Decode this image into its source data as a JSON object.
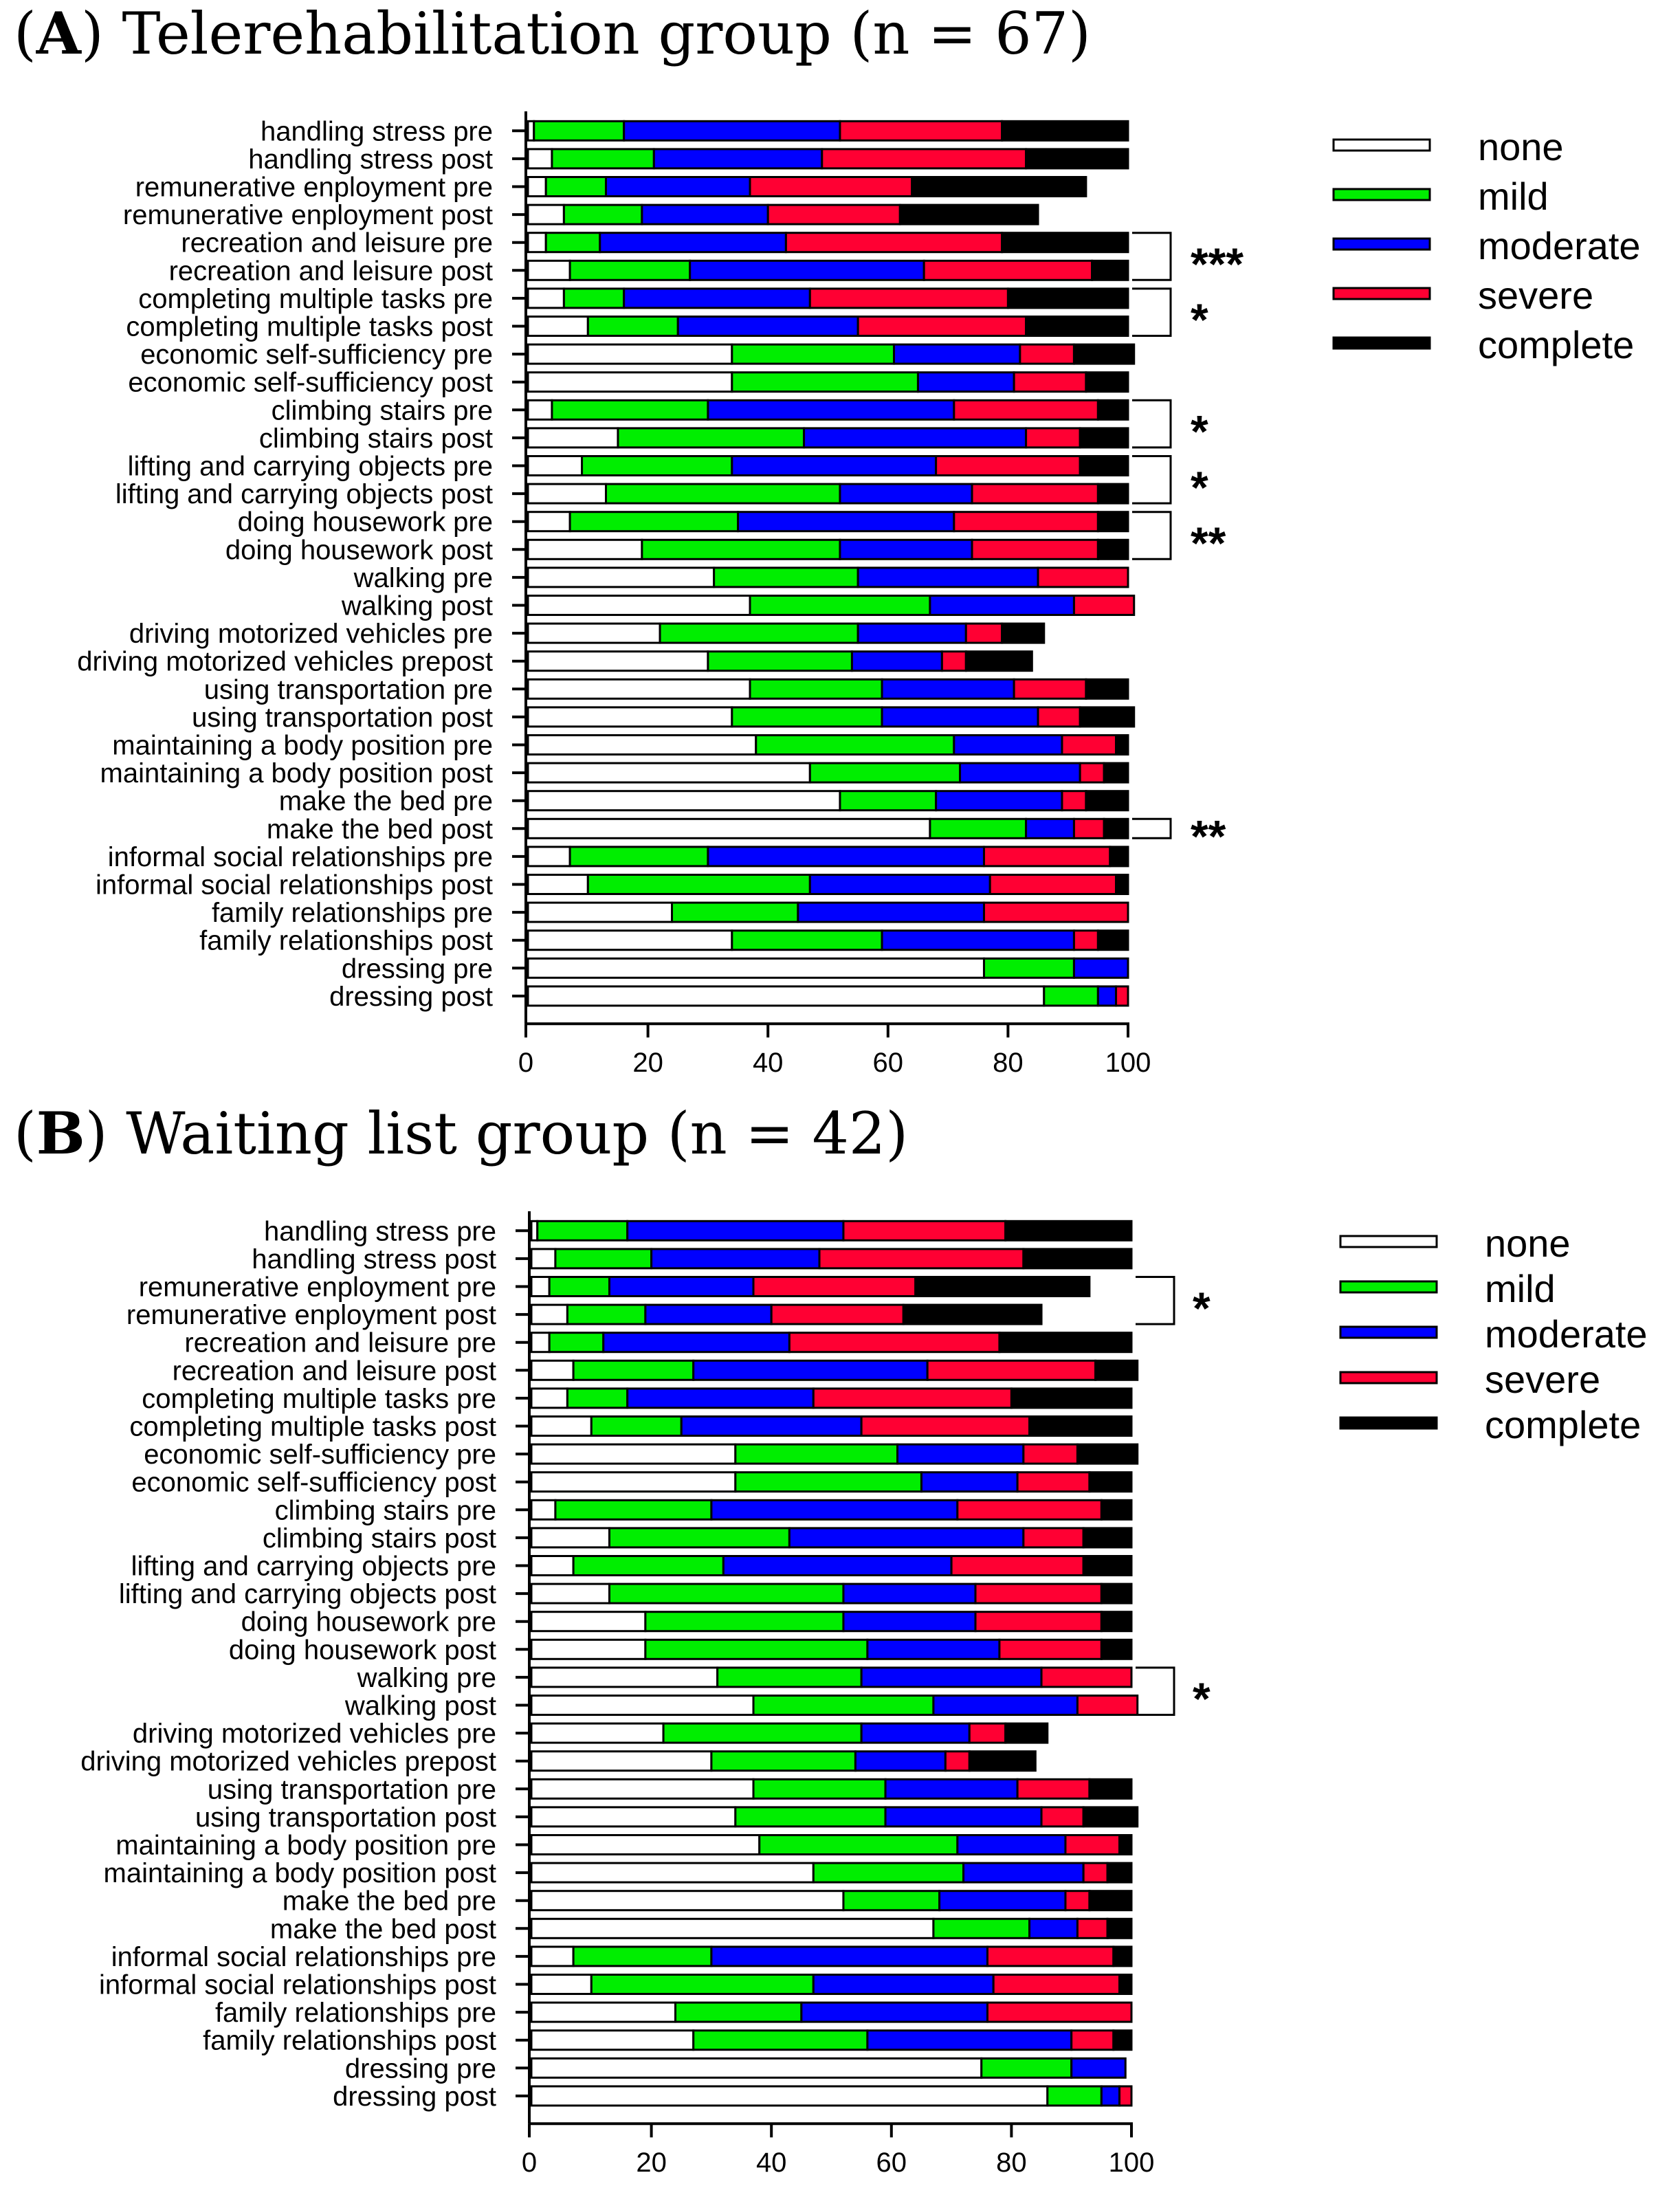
{
  "categories": [
    "handling stress pre",
    "handling stress post",
    "remunerative enployment pre",
    "remunerative enployment post",
    "recreation and leisure pre",
    "recreation and leisure post",
    "completing multiple tasks pre",
    "completing multiple tasks post",
    "economic self-sufficiency pre",
    "economic self-sufficiency post",
    "climbing stairs pre",
    "climbing stairs post",
    "lifting and carrying objects pre",
    "lifting and carrying objects post",
    "doing housework pre",
    "doing housework post",
    "walking pre",
    "walking post",
    "driving motorized vehicles pre",
    "driving motorized vehicles prepost",
    "using transportation pre",
    "using transportation post",
    "maintaining a body position pre",
    "maintaining a body position post",
    "make the bed pre",
    "make the bed post",
    "informal social relationships pre",
    "informal social relationships post",
    "family relationships pre",
    "family relationships post",
    "dressing pre",
    "dressing  post"
  ],
  "legend": [
    {
      "label": "none",
      "color": "#ffffff"
    },
    {
      "label": "mild",
      "color": "#00ee00"
    },
    {
      "label": "moderate",
      "color": "#0000ff"
    },
    {
      "label": "severe",
      "color": "#ff0033"
    },
    {
      "label": "complete",
      "color": "#000000"
    }
  ],
  "chart_data": [
    {
      "type": "bar",
      "orientation": "horizontal",
      "stacked": true,
      "title": "(A) Telerehabilitation group (n = 67)",
      "panel_letter": "A",
      "title_rest": " Telerehabilitation group (n = 67)",
      "xlim": [
        0,
        100
      ],
      "xticks": [
        "0",
        "20",
        "40",
        "60",
        "80",
        "100"
      ],
      "grid": false,
      "legend_position": "right",
      "series_names": [
        "none",
        "mild",
        "moderate",
        "severe",
        "complete"
      ],
      "values": [
        [
          1,
          15,
          36,
          27,
          21
        ],
        [
          4,
          17,
          28,
          34,
          17
        ],
        [
          3,
          10,
          24,
          27,
          29
        ],
        [
          6,
          13,
          21,
          22,
          23
        ],
        [
          3,
          9,
          31,
          36,
          21
        ],
        [
          7,
          20,
          39,
          28,
          6
        ],
        [
          6,
          10,
          31,
          33,
          20
        ],
        [
          10,
          15,
          30,
          28,
          17
        ],
        [
          34,
          27,
          21,
          9,
          10
        ],
        [
          34,
          31,
          16,
          12,
          7
        ],
        [
          4,
          26,
          41,
          24,
          5
        ],
        [
          15,
          31,
          37,
          9,
          8
        ],
        [
          9,
          25,
          34,
          24,
          8
        ],
        [
          13,
          39,
          22,
          21,
          5
        ],
        [
          7,
          28,
          36,
          24,
          5
        ],
        [
          19,
          33,
          22,
          21,
          5
        ],
        [
          31,
          24,
          30,
          15,
          0
        ],
        [
          37,
          30,
          24,
          10,
          0
        ],
        [
          22,
          33,
          18,
          6,
          7
        ],
        [
          30,
          24,
          15,
          4,
          11
        ],
        [
          37,
          22,
          22,
          12,
          7
        ],
        [
          34,
          25,
          26,
          7,
          9
        ],
        [
          38,
          33,
          18,
          9,
          2
        ],
        [
          47,
          25,
          20,
          4,
          4
        ],
        [
          52,
          16,
          21,
          4,
          7
        ],
        [
          67,
          16,
          8,
          5,
          4
        ],
        [
          7,
          23,
          46,
          21,
          3
        ],
        [
          10,
          37,
          30,
          21,
          2
        ],
        [
          24,
          21,
          31,
          24,
          0
        ],
        [
          34,
          25,
          32,
          4,
          5
        ],
        [
          76,
          15,
          9,
          0,
          0
        ],
        [
          86,
          9,
          3,
          2,
          0
        ]
      ],
      "significance": [
        {
          "rows": [
            4,
            5
          ],
          "label": "***"
        },
        {
          "rows": [
            6,
            7
          ],
          "label": "*"
        },
        {
          "rows": [
            10,
            11
          ],
          "label": "*"
        },
        {
          "rows": [
            12,
            13
          ],
          "label": "*"
        },
        {
          "rows": [
            14,
            15
          ],
          "label": "**"
        },
        {
          "rows": [
            25,
            25
          ],
          "label": "**"
        }
      ]
    },
    {
      "type": "bar",
      "orientation": "horizontal",
      "stacked": true,
      "title": "(B) Waiting list group (n = 42)",
      "panel_letter": "B",
      "title_rest": " Waiting list group (n = 42)",
      "xlim": [
        0,
        100
      ],
      "xticks": [
        "0",
        "20",
        "40",
        "60",
        "80",
        "100"
      ],
      "grid": false,
      "legend_position": "right",
      "series_names": [
        "none",
        "mild",
        "moderate",
        "severe",
        "complete"
      ],
      "values": [
        [
          1,
          15,
          36,
          27,
          21
        ],
        [
          4,
          16,
          28,
          34,
          18
        ],
        [
          3,
          10,
          24,
          27,
          29
        ],
        [
          6,
          13,
          21,
          22,
          23
        ],
        [
          3,
          9,
          31,
          35,
          22
        ],
        [
          7,
          20,
          39,
          28,
          7
        ],
        [
          6,
          10,
          31,
          33,
          20
        ],
        [
          10,
          15,
          30,
          28,
          17
        ],
        [
          34,
          27,
          21,
          9,
          10
        ],
        [
          34,
          31,
          16,
          12,
          7
        ],
        [
          4,
          26,
          41,
          24,
          5
        ],
        [
          13,
          30,
          39,
          10,
          8
        ],
        [
          7,
          25,
          38,
          22,
          8
        ],
        [
          13,
          39,
          22,
          21,
          5
        ],
        [
          19,
          33,
          22,
          21,
          5
        ],
        [
          19,
          37,
          22,
          17,
          5
        ],
        [
          31,
          24,
          30,
          15,
          0
        ],
        [
          37,
          30,
          24,
          10,
          0
        ],
        [
          22,
          33,
          18,
          6,
          7
        ],
        [
          30,
          24,
          15,
          4,
          11
        ],
        [
          37,
          22,
          22,
          12,
          7
        ],
        [
          34,
          25,
          26,
          7,
          9
        ],
        [
          38,
          33,
          18,
          9,
          2
        ],
        [
          47,
          25,
          20,
          4,
          4
        ],
        [
          52,
          16,
          21,
          4,
          7
        ],
        [
          67,
          16,
          8,
          5,
          4
        ],
        [
          7,
          23,
          46,
          21,
          3
        ],
        [
          10,
          37,
          30,
          21,
          2
        ],
        [
          24,
          21,
          31,
          24,
          0
        ],
        [
          27,
          29,
          34,
          7,
          3
        ],
        [
          75,
          15,
          9,
          0,
          0
        ],
        [
          86,
          9,
          3,
          2,
          0
        ]
      ],
      "significance": [
        {
          "rows": [
            2,
            3
          ],
          "label": "*"
        },
        {
          "rows": [
            16,
            17
          ],
          "label": "*"
        }
      ]
    }
  ]
}
